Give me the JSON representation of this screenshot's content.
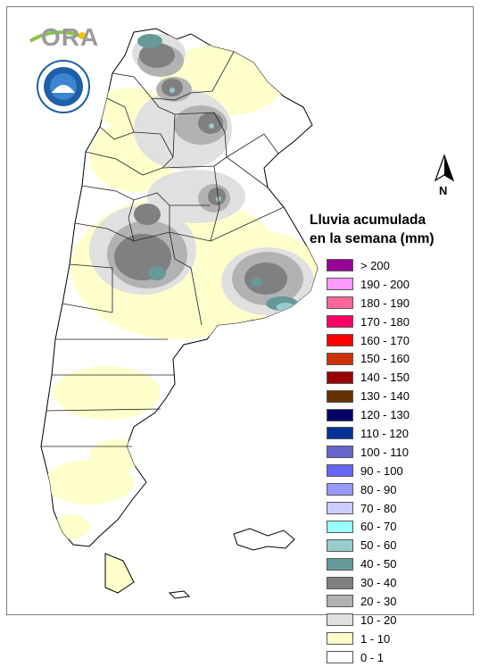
{
  "logo": {
    "text": "ORA"
  },
  "north_arrow": {
    "label": "N"
  },
  "legend": {
    "title_line1": "Lluvia acumulada",
    "title_line2": "en la semana (mm)",
    "items": [
      {
        "label": "> 200",
        "color": "#990099"
      },
      {
        "label": "190 - 200",
        "color": "#ff99ff"
      },
      {
        "label": "180 - 190",
        "color": "#ff6699"
      },
      {
        "label": "170 - 180",
        "color": "#ff0066"
      },
      {
        "label": "160 - 170",
        "color": "#ff0000"
      },
      {
        "label": "150 - 160",
        "color": "#cc3300"
      },
      {
        "label": "140 - 150",
        "color": "#990000"
      },
      {
        "label": "130 - 140",
        "color": "#663300"
      },
      {
        "label": "120 - 130",
        "color": "#000066"
      },
      {
        "label": "110 - 120",
        "color": "#003399"
      },
      {
        "label": "100 - 110",
        "color": "#6666cc"
      },
      {
        "label": "90 - 100",
        "color": "#6666ff"
      },
      {
        "label": "80 - 90",
        "color": "#9999ff"
      },
      {
        "label": "70 - 80",
        "color": "#ccccff"
      },
      {
        "label": "60 - 70",
        "color": "#99ffff"
      },
      {
        "label": "50 - 60",
        "color": "#99cccc"
      },
      {
        "label": "40 - 50",
        "color": "#669999"
      },
      {
        "label": "30 - 40",
        "color": "#808080"
      },
      {
        "label": "20 - 30",
        "color": "#b2b2b2"
      },
      {
        "label": "10 - 20",
        "color": "#e0e0e0"
      },
      {
        "label": "1 - 10",
        "color": "#ffffcc"
      },
      {
        "label": "0 - 1",
        "color": "#ffffff"
      }
    ]
  }
}
